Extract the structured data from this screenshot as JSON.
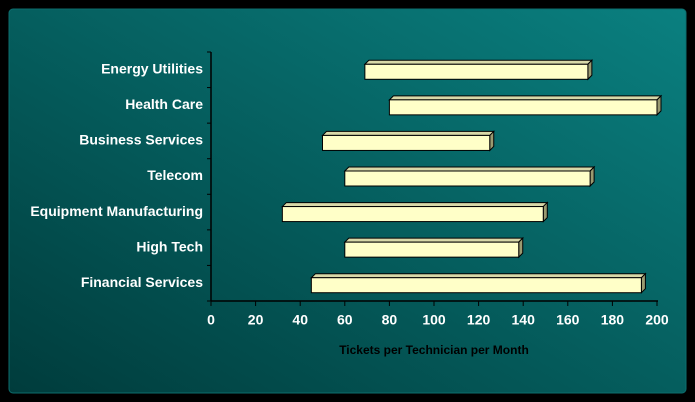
{
  "chart_data": {
    "type": "range-bar",
    "x_label": "Tickets per Technician per Month",
    "categories": [
      "Energy Utilities",
      "Health Care",
      "Business Services",
      "Telecom",
      "Equipment Manufacturing",
      "High Tech",
      "Financial Services"
    ],
    "low": [
      69,
      80,
      50,
      60,
      32,
      60,
      45
    ],
    "high": [
      169,
      200,
      125,
      170,
      149,
      138,
      193
    ],
    "color": "#ffffc8",
    "xlim": [
      0,
      200
    ],
    "xticks": [
      0,
      20,
      40,
      60,
      80,
      100,
      120,
      140,
      160,
      180,
      200
    ]
  }
}
